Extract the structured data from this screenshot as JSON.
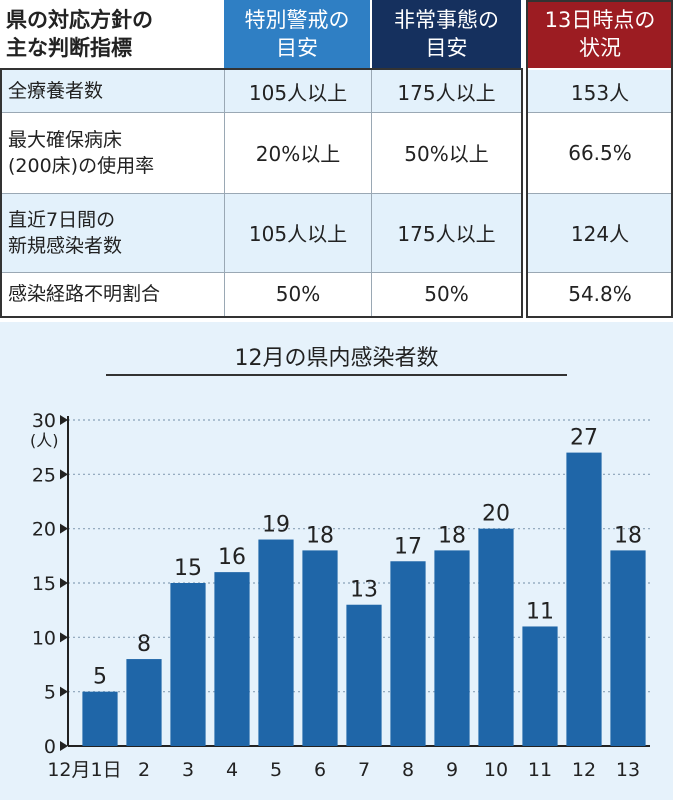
{
  "table": {
    "title_lines": [
      "県の対応方針の",
      "主な判断指標"
    ],
    "headers": [
      {
        "lines": [
          "特別警戒の",
          "目安"
        ],
        "color": "#2f7fc4"
      },
      {
        "lines": [
          "非常事態の",
          "目安"
        ],
        "color": "#15305e"
      },
      {
        "lines": [
          "13日時点の",
          "状況"
        ],
        "color": "#9c1c22"
      }
    ],
    "rows": [
      {
        "label_lines": [
          "全療養者数"
        ],
        "special": "105人以上",
        "emergency": "175人以上",
        "current": "153人"
      },
      {
        "label_lines": [
          "最大確保病床",
          "(200床)の使用率"
        ],
        "special": "20%以上",
        "emergency": "50%以上",
        "current": "66.5%"
      },
      {
        "label_lines": [
          "直近7日間の",
          "新規感染者数"
        ],
        "special": "105人以上",
        "emergency": "175人以上",
        "current": "124人"
      },
      {
        "label_lines": [
          "感染経路不明割合"
        ],
        "special": "50%",
        "emergency": "50%",
        "current": "54.8%"
      }
    ]
  },
  "chart_data": {
    "type": "bar",
    "title": "12月の県内感染者数",
    "ylabel": "(人)",
    "ylim": [
      0,
      30
    ],
    "yticks": [
      0,
      5,
      10,
      15,
      20,
      25,
      30
    ],
    "categories": [
      "12月1日",
      "2",
      "3",
      "4",
      "5",
      "6",
      "7",
      "8",
      "9",
      "10",
      "11",
      "12",
      "13"
    ],
    "values": [
      5,
      8,
      15,
      16,
      19,
      18,
      13,
      17,
      18,
      20,
      11,
      27,
      18
    ],
    "bar_color": "#1f66a8",
    "grid": true
  }
}
